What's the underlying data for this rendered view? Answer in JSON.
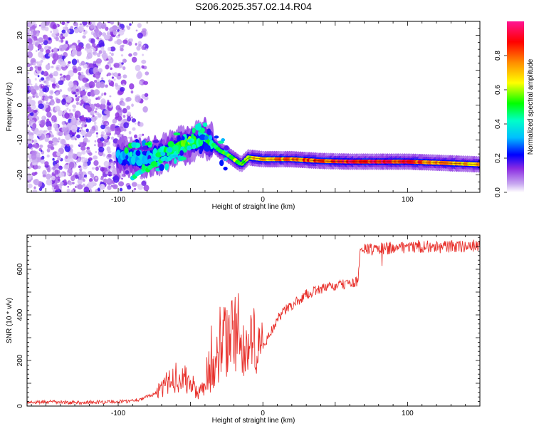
{
  "title": "S206.2025.357.02.14.R04",
  "chart_data": [
    {
      "type": "heatmap",
      "title": "S206.2025.357.02.14.R04",
      "xlabel": "Height of straight line (km)",
      "ylabel": "Frequency (Hz)",
      "xlim": [
        -163,
        150
      ],
      "ylim": [
        -25,
        24
      ],
      "x_ticks": [
        -100,
        0,
        100
      ],
      "y_ticks": [
        20,
        10,
        0,
        -10,
        -20
      ],
      "colorbar": {
        "label": "Normalized spectral amplitude",
        "range": [
          0,
          1
        ],
        "ticks": [
          "0.0",
          "0.2",
          "0.4",
          "0.6",
          "0.8"
        ],
        "colormap": [
          "#ffffff",
          "#c8a8f0",
          "#8a2be2",
          "#0000ff",
          "#00bfff",
          "#00ffc8",
          "#00ff00",
          "#ffff00",
          "#ff8c00",
          "#ff0000",
          "#ff1493"
        ]
      },
      "ridge": {
        "x": [
          -100,
          -90,
          -80,
          -70,
          -60,
          -50,
          -45,
          -40,
          -35,
          -30,
          -25,
          -20,
          -15,
          -10,
          0,
          20,
          40,
          60,
          80,
          100,
          120,
          150
        ],
        "frequency": [
          -14.5,
          -15,
          -15,
          -14,
          -12,
          -11,
          -10,
          -9.5,
          -11,
          -13,
          -14,
          -15.5,
          -17,
          -15,
          -15.5,
          -15.5,
          -16,
          -16.2,
          -16.2,
          -16.2,
          -16.5,
          -17
        ],
        "amplitude": [
          0.3,
          0.35,
          0.35,
          0.45,
          0.5,
          0.55,
          0.5,
          0.45,
          0.5,
          0.5,
          0.55,
          0.6,
          0.55,
          0.65,
          0.75,
          0.8,
          0.85,
          0.9,
          0.9,
          0.9,
          0.75,
          0.7
        ]
      },
      "noise_region_x": [
        -163,
        -80
      ]
    },
    {
      "type": "line",
      "xlabel": "Height of straight line (km)",
      "ylabel": "SNR (10 * v/v)",
      "xlim": [
        -163,
        150
      ],
      "ylim": [
        0,
        750
      ],
      "x_ticks": [
        -100,
        0,
        100
      ],
      "y_ticks": [
        0,
        200,
        400,
        600
      ],
      "color": "#e8302b",
      "series": [
        {
          "name": "SNR",
          "x": [
            -163,
            -150,
            -130,
            -110,
            -95,
            -85,
            -80,
            -70,
            -65,
            -60,
            -55,
            -50,
            -45,
            -40,
            -35,
            -30,
            -28,
            -25,
            -20,
            -15,
            -10,
            -5,
            0,
            5,
            10,
            15,
            20,
            25,
            30,
            40,
            50,
            60,
            66,
            67,
            70,
            80,
            90,
            100,
            110,
            120,
            130,
            140,
            150
          ],
          "values": [
            15,
            18,
            15,
            18,
            20,
            30,
            40,
            70,
            110,
            130,
            120,
            100,
            60,
            80,
            150,
            230,
            300,
            280,
            320,
            260,
            300,
            260,
            260,
            320,
            380,
            420,
            440,
            465,
            490,
            515,
            525,
            540,
            545,
            680,
            685,
            690,
            695,
            700,
            700,
            695,
            700,
            700,
            705
          ]
        }
      ]
    }
  ]
}
